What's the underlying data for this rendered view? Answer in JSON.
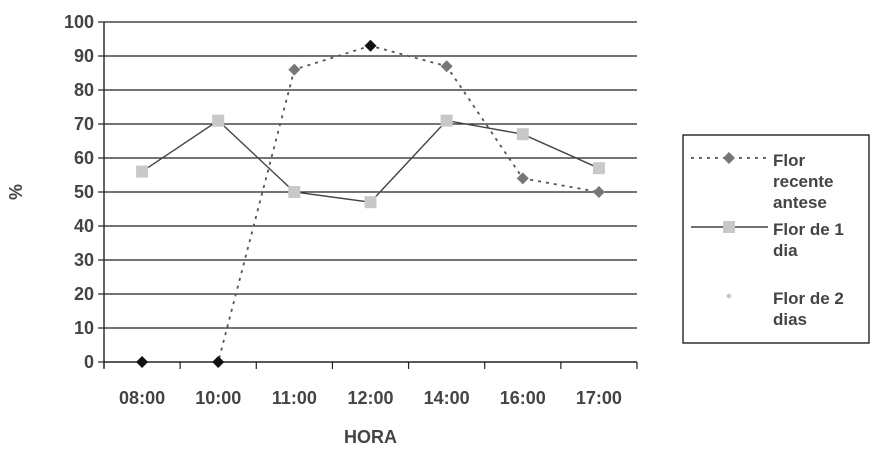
{
  "chart_data": {
    "type": "line",
    "title": "",
    "xlabel": "HORA",
    "ylabel": "%",
    "categories": [
      "08:00",
      "10:00",
      "11:00",
      "12:00",
      "14:00",
      "16:00",
      "17:00"
    ],
    "ylim": [
      0,
      100
    ],
    "yticks": [
      "0",
      "10",
      "20",
      "30",
      "40",
      "50",
      "60",
      "70",
      "80",
      "90",
      "100"
    ],
    "grid": true,
    "legend_position": "right",
    "series": [
      {
        "name": "Flor recente antese",
        "values": [
          0,
          0,
          86,
          93,
          87,
          54,
          50
        ],
        "color": "#555555",
        "line_style": "dotted",
        "marker": "diamond"
      },
      {
        "name": "Flor de 1 dia",
        "values": [
          56,
          71,
          50,
          47,
          71,
          67,
          57
        ],
        "color": "#444444",
        "marker_color": "#c8c8c8",
        "line_style": "solid",
        "marker": "square"
      },
      {
        "name": "Flor de 2 dias",
        "values": [
          null,
          null,
          null,
          null,
          null,
          null,
          null
        ],
        "color": "#c8c8c8",
        "line_style": "none",
        "marker": "diamond"
      }
    ]
  }
}
